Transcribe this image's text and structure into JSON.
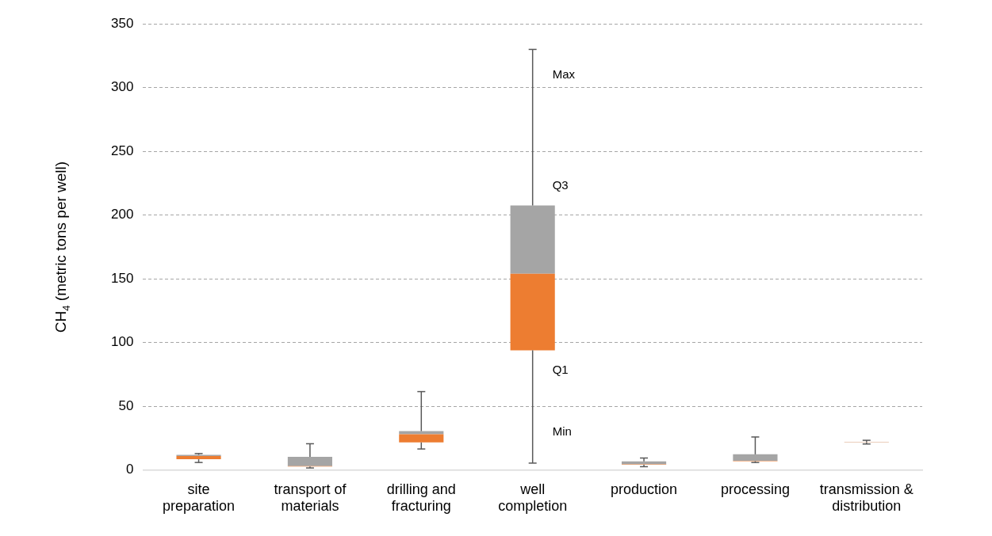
{
  "chart_data": {
    "type": "box",
    "ylabel": "CH$_{4}$ (metric tons per well)",
    "categories": [
      "site preparation",
      "transport of materials",
      "drilling and fracturing",
      "well completion",
      "production",
      "processing",
      "transmission & distribution"
    ],
    "boxes": [
      {
        "low": 6,
        "q1": 8.5,
        "median": 11,
        "q3": 12,
        "high": 13
      },
      {
        "low": 1.7,
        "q1": 2.9,
        "median": 3.2,
        "q3": 10.5,
        "high": 20.7
      },
      {
        "low": 16.6,
        "q1": 21.7,
        "median": 28.1,
        "q3": 30.6,
        "high": 61.6
      },
      {
        "low": 5.5,
        "q1": 94,
        "median": 154,
        "q3": 207.6,
        "high": 330
      },
      {
        "low": 2.7,
        "q1": 4.2,
        "median": 4.5,
        "q3": 6.8,
        "high": 9.5
      },
      {
        "low": 6,
        "q1": 7,
        "median": 7.3,
        "q3": 12.4,
        "high": 26
      },
      {
        "low": 20.5,
        "q1": 21.7,
        "median": 21.9,
        "q3": 22.1,
        "high": 23.4
      }
    ],
    "colors": [
      [
        "#ed7d31",
        "#a5a5a5"
      ],
      [
        "#ed7d31",
        "#a5a5a5"
      ],
      [
        "#ed7d31",
        "#a5a5a5"
      ],
      [
        "#ed7d31",
        "#a5a5a5"
      ],
      [
        "#ed7d31",
        "#a5a5a5"
      ],
      [
        "#ed7d31",
        "#a5a5a5"
      ],
      [
        "#ed7d31",
        "#a5a5a5"
      ]
    ],
    "ylim": [
      0,
      350
    ],
    "yticks": [
      0,
      50,
      100,
      150,
      200,
      250,
      300,
      350
    ],
    "grid": "y",
    "legend": false,
    "annotations": [
      {
        "text": "Max",
        "x": "well completion",
        "y": 310
      },
      {
        "text": "Q3",
        "x": "well completion",
        "y": 223
      },
      {
        "text": "Q1",
        "x": "well completion",
        "y": 78
      },
      {
        "text": "Min",
        "x": "well completion",
        "y": 30
      }
    ]
  }
}
